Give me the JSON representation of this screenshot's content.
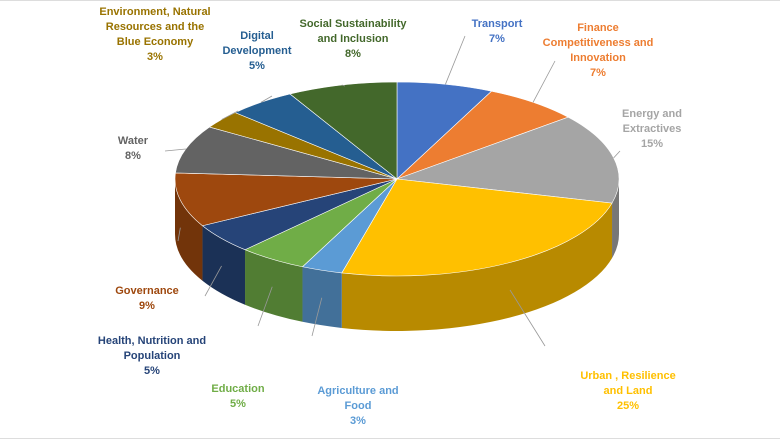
{
  "chart_data": {
    "type": "pie",
    "categories": [
      "Transport",
      "Finance Competitiveness and Innovation",
      "Energy and Extractives",
      "Urban , Resilience and Land",
      "Agriculture and Food",
      "Education",
      "Health, Nutrition and Population",
      "Governance",
      "Water",
      "Environment, Natural Resources and the Blue Economy",
      "Digital Development",
      "Social Sustainability and Inclusion"
    ],
    "values": [
      7,
      7,
      15,
      25,
      3,
      5,
      5,
      9,
      8,
      3,
      5,
      8
    ],
    "value_labels": [
      "7%",
      "7%",
      "15%",
      "25%",
      "3%",
      "5%",
      "5%",
      "9%",
      "8%",
      "3%",
      "5%",
      "8%"
    ],
    "colors": [
      "#4472c4",
      "#ed7d31",
      "#a5a5a5",
      "#ffc000",
      "#5b9bd5",
      "#70ad47",
      "#264478",
      "#9e480e",
      "#636363",
      "#997300",
      "#255e91",
      "#43682b"
    ]
  }
}
